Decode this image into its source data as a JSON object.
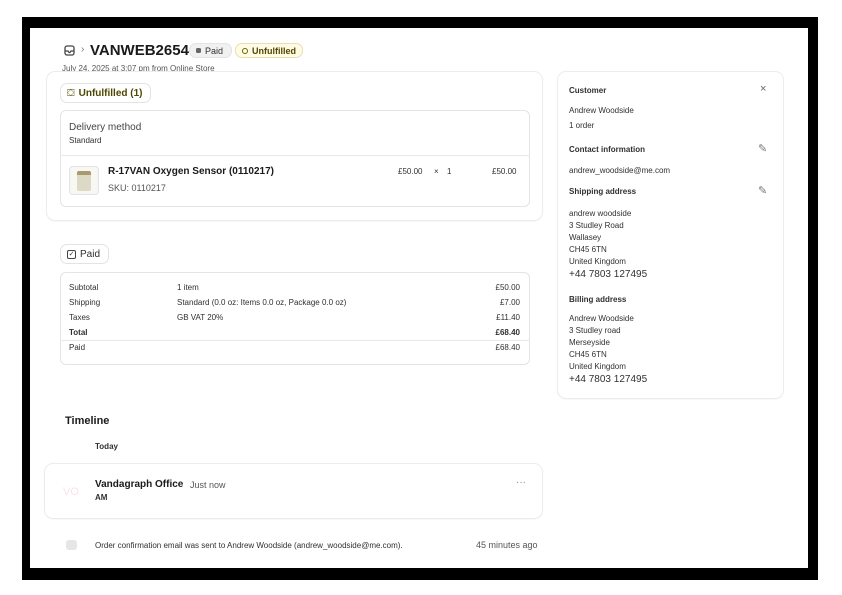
{
  "header": {
    "order_id": "VANWEB2654",
    "paid_badge": "Paid",
    "unfulfilled_badge": "Unfulfilled",
    "date": "July 24, 2025 at 3:07 pm from Online Store"
  },
  "fulfillment": {
    "status_label": "Unfulfilled (1)",
    "delivery_method_label": "Delivery method",
    "delivery_method": "Standard",
    "item": {
      "name": "R-17VAN Oxygen Sensor (0110217)",
      "sku": "SKU: 0110217",
      "price": "£50.00",
      "times": "×",
      "qty": "1",
      "total": "£50.00"
    }
  },
  "payment": {
    "status_label": "Paid",
    "rows": [
      {
        "label": "Subtotal",
        "detail": "1 item",
        "amount": "£50.00"
      },
      {
        "label": "Shipping",
        "detail": "Standard (0.0 oz: Items 0.0 oz, Package 0.0 oz)",
        "amount": "£7.00"
      },
      {
        "label": "Taxes",
        "detail": "GB VAT 20%",
        "amount": "£11.40"
      },
      {
        "label": "Total",
        "detail": "",
        "amount": "£68.40"
      },
      {
        "label": "Paid",
        "detail": "",
        "amount": "£68.40"
      }
    ]
  },
  "timeline": {
    "title": "Timeline",
    "day": "Today",
    "comment": {
      "avatar": "VO",
      "author": "Vandagraph Office",
      "time": "Just now",
      "text": "AM"
    },
    "event": {
      "text": "Order confirmation email was sent to Andrew Woodside (andrew_woodside@me.com).",
      "time": "45 minutes ago"
    }
  },
  "customer": {
    "title": "Customer",
    "name": "Andrew Woodside",
    "orders": "1 order",
    "contact_title": "Contact information",
    "email": "andrew_woodside@me.com",
    "shipping_title": "Shipping address",
    "shipping": [
      "andrew woodside",
      "3 Studley Road",
      "Wallasey",
      "CH45 6TN",
      "United Kingdom"
    ],
    "shipping_phone": "+44 7803 127495",
    "billing_title": "Billing address",
    "billing": [
      "Andrew Woodside",
      "3 Studley road",
      "Merseyside",
      "CH45 6TN",
      "United Kingdom"
    ],
    "billing_phone": "+44 7803 127495"
  },
  "colors": {
    "unfulfilled_badge_bg": "#fff",
    "unfulfilled_text": "#4f4700",
    "accent_yellow": "#b5a300"
  }
}
